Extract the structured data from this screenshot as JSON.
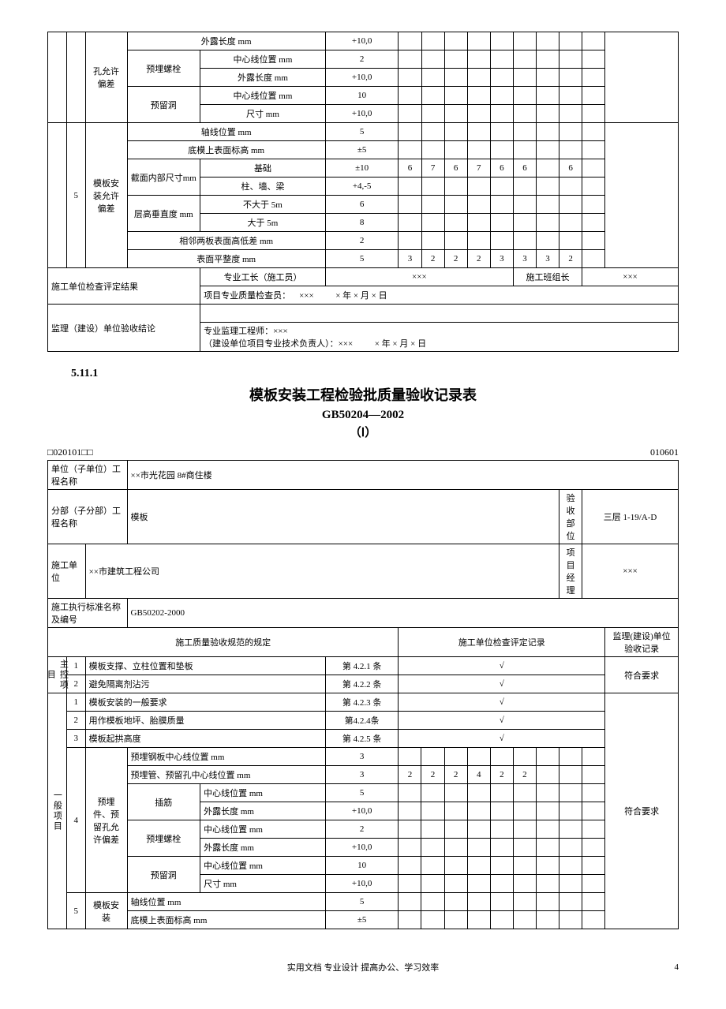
{
  "topTable": {
    "group4Label": "孔允许偏差",
    "rows4": [
      {
        "sub": "",
        "item": "外露长度 mm",
        "val": "+10,0",
        "checks": [
          "",
          "",
          "",
          "",
          "",
          "",
          "",
          "",
          ""
        ]
      },
      {
        "sub": "预埋螺栓",
        "item": "中心线位置 mm",
        "val": "2",
        "checks": [
          "",
          "",
          "",
          "",
          "",
          "",
          "",
          "",
          ""
        ]
      },
      {
        "sub": "",
        "item": "外露长度 mm",
        "val": "+10,0",
        "checks": [
          "",
          "",
          "",
          "",
          "",
          "",
          "",
          "",
          ""
        ]
      },
      {
        "sub": "预留洞",
        "item": "中心线位置 mm",
        "val": "10",
        "checks": [
          "",
          "",
          "",
          "",
          "",
          "",
          "",
          "",
          ""
        ]
      },
      {
        "sub": "",
        "item": "尺寸 mm",
        "val": "+10,0",
        "checks": [
          "",
          "",
          "",
          "",
          "",
          "",
          "",
          "",
          ""
        ]
      }
    ],
    "group5Num": "5",
    "group5Label": "模板安装允许偏差",
    "rows5": [
      {
        "sub": "轴线位置 mm",
        "item": "",
        "val": "5",
        "checks": [
          "",
          "",
          "",
          "",
          "",
          "",
          "",
          "",
          ""
        ]
      },
      {
        "sub": "底模上表面标高 mm",
        "item": "",
        "val": "±5",
        "checks": [
          "",
          "",
          "",
          "",
          "",
          "",
          "",
          "",
          ""
        ]
      },
      {
        "sub": "截面内部尺寸mm",
        "item": "基础",
        "val": "±10",
        "checks": [
          "6",
          "7",
          "6",
          "7",
          "6",
          "6",
          "",
          "6",
          ""
        ]
      },
      {
        "sub": "",
        "item": "柱、墙、梁",
        "val": "+4,-5",
        "checks": [
          "",
          "",
          "",
          "",
          "",
          "",
          "",
          "",
          ""
        ]
      },
      {
        "sub": "层高垂直度 mm",
        "item": "不大于 5m",
        "val": "6",
        "checks": [
          "",
          "",
          "",
          "",
          "",
          "",
          "",
          "",
          ""
        ]
      },
      {
        "sub": "",
        "item": "大于 5m",
        "val": "8",
        "checks": [
          "",
          "",
          "",
          "",
          "",
          "",
          "",
          "",
          ""
        ]
      },
      {
        "sub": "相邻两板表面高低差 mm",
        "item": "",
        "val": "2",
        "checks": [
          "",
          "",
          "",
          "",
          "",
          "",
          "",
          "",
          ""
        ]
      },
      {
        "sub": "表面平整度 mm",
        "item": "",
        "val": "5",
        "checks": [
          "3",
          "2",
          "2",
          "2",
          "3",
          "3",
          "3",
          "2",
          ""
        ]
      }
    ],
    "sig1": {
      "label": "施工单位检查评定结果",
      "a": "专业工长（施工员）",
      "av": "×××",
      "b": "施工班组长",
      "bv": "×××",
      "c": "项目专业质量检查员：",
      "cv": "×××",
      "d": "× 年 × 月 × 日"
    },
    "sig2": {
      "label": "监理（建设）单位验收结论",
      "a": "专业监理工程师：×××",
      "b": "（建设单位项目专业技术负责人）：×××",
      "c": "× 年 × 月 × 日"
    }
  },
  "sectionNum": "5.11.1",
  "title": "模板安装工程检验批质量验收记录表",
  "subtitle1": "GB50204—2002",
  "subtitle2": "（Ⅰ）",
  "codeLeft": "□020101□□",
  "codeRight": "010601",
  "headerRows": {
    "r1a": "单位（子单位）工程名称",
    "r1b": "××市光花园 8#商住楼",
    "r2a": "分部（子分部）工程名称",
    "r2b": "模板",
    "r2c": "验收部位",
    "r2d": "三层 1-19/A-D",
    "r3a": "施工单位",
    "r3b": "××市建筑工程公司",
    "r3c": "项目经理",
    "r3d": "×××",
    "r4a": "施工执行标准名称及编号",
    "r4b": "GB50202-2000",
    "r5a": "施工质量验收规范的规定",
    "r5b": "施工单位检查评定记录",
    "r5c": "监理(建设)单位验收记录"
  },
  "mainCtrl": {
    "label": "主控项目",
    "rows": [
      {
        "n": "1",
        "item": "模板支撑、立柱位置和垫板",
        "ref": "第 4.2.1 条",
        "chk": "√",
        "rec": "符合要求"
      },
      {
        "n": "2",
        "item": "避免隔离剂沾污",
        "ref": "第 4.2.2 条",
        "chk": "√",
        "rec": ""
      }
    ]
  },
  "general": {
    "label": "一般项目",
    "simple": [
      {
        "n": "1",
        "item": "模板安装的一般要求",
        "ref": "第 4.2.3 条",
        "chk": "√",
        "rec": "符合要求"
      },
      {
        "n": "2",
        "item": "用作模板地坪、胎膜质量",
        "ref": "第4.2.4条",
        "chk": "√",
        "rec": ""
      },
      {
        "n": "3",
        "item": "模板起拱高度",
        "ref": "第 4.2.5 条",
        "chk": "√",
        "rec": ""
      }
    ],
    "g4num": "4",
    "g4label": "预埋件、预留孔允许偏差",
    "g4rows": [
      {
        "sub": "预埋钢板中心线位置 mm",
        "item": "",
        "val": "3",
        "checks": [
          "",
          "",
          "",
          "",
          "",
          "",
          "",
          "",
          ""
        ]
      },
      {
        "sub": "预埋管、预留孔中心线位置 mm",
        "item": "",
        "val": "3",
        "checks": [
          "2",
          "2",
          "2",
          "4",
          "2",
          "2",
          "",
          "",
          ""
        ]
      },
      {
        "sub": "插筋",
        "item": "中心线位置 mm",
        "val": "5",
        "checks": [
          "",
          "",
          "",
          "",
          "",
          "",
          "",
          "",
          ""
        ]
      },
      {
        "sub": "",
        "item": "外露长度 mm",
        "val": "+10,0",
        "checks": [
          "",
          "",
          "",
          "",
          "",
          "",
          "",
          "",
          ""
        ]
      },
      {
        "sub": "预埋螺栓",
        "item": "中心线位置 mm",
        "val": "2",
        "checks": [
          "",
          "",
          "",
          "",
          "",
          "",
          "",
          "",
          ""
        ]
      },
      {
        "sub": "",
        "item": "外露长度 mm",
        "val": "+10,0",
        "checks": [
          "",
          "",
          "",
          "",
          "",
          "",
          "",
          "",
          ""
        ]
      },
      {
        "sub": "预留洞",
        "item": "中心线位置 mm",
        "val": "10",
        "checks": [
          "",
          "",
          "",
          "",
          "",
          "",
          "",
          "",
          ""
        ]
      },
      {
        "sub": "",
        "item": "尺寸 mm",
        "val": "+10,0",
        "checks": [
          "",
          "",
          "",
          "",
          "",
          "",
          "",
          "",
          ""
        ]
      }
    ],
    "g5num": "5",
    "g5label": "模板安装",
    "g5rows": [
      {
        "sub": "轴线位置 mm",
        "item": "",
        "val": "5",
        "checks": [
          "",
          "",
          "",
          "",
          "",
          "",
          "",
          "",
          ""
        ]
      },
      {
        "sub": "底模上表面标高 mm",
        "item": "",
        "val": "±5",
        "checks": [
          "",
          "",
          "",
          "",
          "",
          "",
          "",
          "",
          ""
        ]
      }
    ]
  },
  "footer": "实用文档 专业设计 提高办公、学习效率",
  "pageNum": "4"
}
